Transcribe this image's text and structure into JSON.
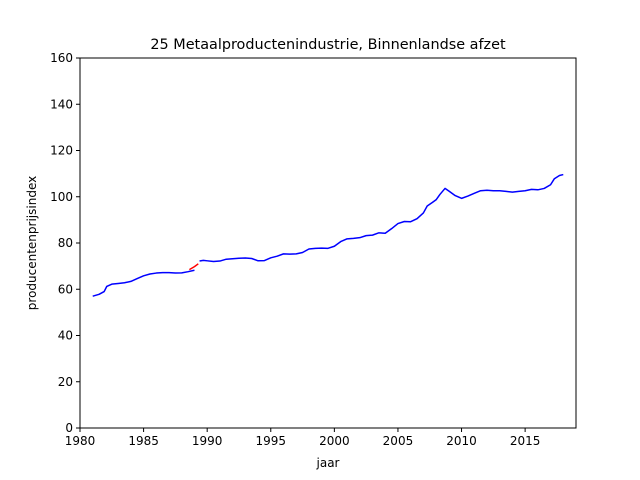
{
  "chart_data": {
    "type": "line",
    "title": "25 Metaalproductenindustrie, Binnenlandse afzet",
    "xlabel": "jaar",
    "ylabel": "producentenprijsindex",
    "xlim": [
      1980,
      2019
    ],
    "ylim": [
      0,
      160
    ],
    "xticks": [
      1980,
      1985,
      1990,
      1995,
      2000,
      2005,
      2010,
      2015
    ],
    "yticks": [
      0,
      20,
      40,
      60,
      80,
      100,
      120,
      140,
      160
    ],
    "grid": false,
    "legend": "none",
    "series": [
      {
        "color": "#0000ff",
        "points": [
          [
            1981.0,
            57.0
          ],
          [
            1981.5,
            57.8
          ],
          [
            1981.9,
            59.0
          ],
          [
            1982.1,
            61.2
          ],
          [
            1982.5,
            62.2
          ],
          [
            1983.0,
            62.5
          ],
          [
            1983.5,
            62.8
          ],
          [
            1984.0,
            63.4
          ],
          [
            1984.5,
            64.6
          ],
          [
            1985.0,
            65.8
          ],
          [
            1985.5,
            66.6
          ],
          [
            1986.0,
            67.0
          ],
          [
            1986.5,
            67.2
          ],
          [
            1987.0,
            67.2
          ],
          [
            1987.5,
            67.0
          ],
          [
            1988.0,
            67.1
          ],
          [
            1988.5,
            67.6
          ],
          [
            1989.0,
            68.2
          ]
        ]
      },
      {
        "color": "#ff0000",
        "points": [
          [
            1988.6,
            68.5
          ],
          [
            1989.0,
            69.8
          ],
          [
            1989.3,
            71.0
          ]
        ]
      },
      {
        "color": "#0000ff",
        "points": [
          [
            1989.4,
            72.2
          ],
          [
            1989.7,
            72.5
          ],
          [
            1990.0,
            72.3
          ],
          [
            1990.5,
            72.0
          ],
          [
            1991.0,
            72.2
          ],
          [
            1991.5,
            73.0
          ],
          [
            1992.0,
            73.2
          ],
          [
            1992.5,
            73.4
          ],
          [
            1993.0,
            73.5
          ],
          [
            1993.5,
            73.3
          ],
          [
            1994.0,
            72.3
          ],
          [
            1994.5,
            72.4
          ],
          [
            1995.0,
            73.6
          ],
          [
            1995.5,
            74.3
          ],
          [
            1996.0,
            75.3
          ],
          [
            1996.5,
            75.2
          ],
          [
            1997.0,
            75.3
          ],
          [
            1997.5,
            75.9
          ],
          [
            1998.0,
            77.4
          ],
          [
            1998.5,
            77.7
          ],
          [
            1999.0,
            77.8
          ],
          [
            1999.5,
            77.7
          ],
          [
            2000.0,
            78.6
          ],
          [
            2000.5,
            80.6
          ],
          [
            2001.0,
            81.8
          ],
          [
            2001.5,
            82.0
          ],
          [
            2002.0,
            82.3
          ],
          [
            2002.5,
            83.2
          ],
          [
            2003.0,
            83.4
          ],
          [
            2003.5,
            84.4
          ],
          [
            2004.0,
            84.2
          ],
          [
            2004.5,
            86.2
          ],
          [
            2005.0,
            88.4
          ],
          [
            2005.5,
            89.3
          ],
          [
            2006.0,
            89.2
          ],
          [
            2006.5,
            90.5
          ],
          [
            2007.0,
            93.0
          ],
          [
            2007.3,
            96.0
          ],
          [
            2007.7,
            97.5
          ],
          [
            2008.0,
            98.7
          ],
          [
            2008.3,
            101.0
          ],
          [
            2008.7,
            103.6
          ],
          [
            2009.0,
            102.5
          ],
          [
            2009.5,
            100.5
          ],
          [
            2010.0,
            99.3
          ],
          [
            2010.5,
            100.3
          ],
          [
            2011.0,
            101.5
          ],
          [
            2011.5,
            102.6
          ],
          [
            2012.0,
            102.8
          ],
          [
            2012.5,
            102.6
          ],
          [
            2013.0,
            102.6
          ],
          [
            2013.5,
            102.3
          ],
          [
            2014.0,
            102.0
          ],
          [
            2014.5,
            102.3
          ],
          [
            2015.0,
            102.6
          ],
          [
            2015.5,
            103.2
          ],
          [
            2016.0,
            103.0
          ],
          [
            2016.5,
            103.6
          ],
          [
            2017.0,
            105.2
          ],
          [
            2017.3,
            107.8
          ],
          [
            2017.7,
            109.2
          ],
          [
            2018.0,
            109.6
          ]
        ]
      }
    ]
  }
}
